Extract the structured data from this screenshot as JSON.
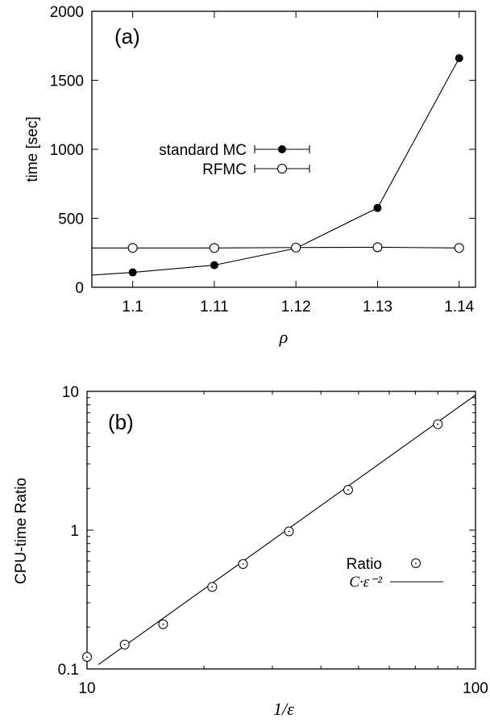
{
  "chart_data": [
    {
      "type": "line",
      "panel_label": "(a)",
      "xlabel": "ρ",
      "ylabel": "time [sec]",
      "xlim": [
        1.095,
        1.142
      ],
      "ylim": [
        0,
        2000
      ],
      "xticks": [
        1.1,
        1.11,
        1.12,
        1.13,
        1.14
      ],
      "xtick_labels": [
        "1.1",
        "1.11",
        "1.12",
        "1.13",
        "1.14"
      ],
      "yticks": [
        0,
        500,
        1000,
        1500,
        2000
      ],
      "ytick_labels": [
        "0",
        "500",
        "1000",
        "1500",
        "2000"
      ],
      "legend_position": "middle-left",
      "series": [
        {
          "name": "standard MC",
          "marker": "filled-circle",
          "x": [
            1.1,
            1.11,
            1.12,
            1.13,
            1.14
          ],
          "y": [
            108,
            160,
            283,
            575,
            1660
          ],
          "line_extends_to_xmin_y": 88
        },
        {
          "name": "RFMC",
          "marker": "open-circle",
          "x": [
            1.1,
            1.11,
            1.12,
            1.13,
            1.14
          ],
          "y": [
            285,
            285,
            288,
            290,
            285
          ],
          "line_extends_to_xmin_y": 285
        }
      ]
    },
    {
      "type": "scatter",
      "panel_label": "(b)",
      "xlabel": "1/ε",
      "ylabel": "CPU-time Ratio",
      "xscale": "log",
      "yscale": "log",
      "xlim": [
        10,
        100
      ],
      "ylim": [
        0.1,
        10
      ],
      "xticks": [
        10,
        100
      ],
      "xtick_labels": [
        "10",
        "100"
      ],
      "yticks": [
        0.1,
        1,
        10
      ],
      "ytick_labels": [
        "0.1",
        "1",
        "10"
      ],
      "legend_position": "middle-right",
      "series": [
        {
          "name": "Ratio",
          "marker": "dotted-open-circle",
          "x": [
            10.0,
            12.5,
            15.7,
            21.0,
            25.2,
            33.1,
            47.0,
            80.0
          ],
          "y": [
            0.122,
            0.15,
            0.21,
            0.39,
            0.57,
            0.98,
            1.95,
            5.8
          ]
        },
        {
          "name": "C·ε⁻²",
          "type": "line",
          "exponent": 2,
          "coefficient": 0.00094,
          "x_range": [
            10.7,
            100
          ]
        }
      ]
    }
  ]
}
